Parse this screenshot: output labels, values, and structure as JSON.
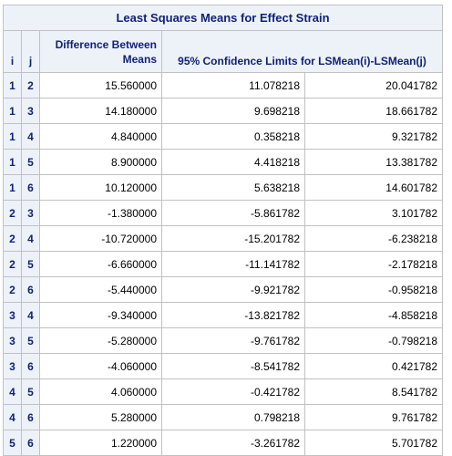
{
  "title": "Least Squares Means for Effect Strain",
  "headers": {
    "i": "i",
    "j": "j",
    "difference_line1": "Difference Between",
    "difference_line2": "Means",
    "confidence_limits": "95% Confidence Limits for LSMean(i)-LSMean(j)"
  },
  "rows": [
    {
      "i": "1",
      "j": "2",
      "diff": "15.560000",
      "lower": "11.078218",
      "upper": "20.041782"
    },
    {
      "i": "1",
      "j": "3",
      "diff": "14.180000",
      "lower": "9.698218",
      "upper": "18.661782"
    },
    {
      "i": "1",
      "j": "4",
      "diff": "4.840000",
      "lower": "0.358218",
      "upper": "9.321782"
    },
    {
      "i": "1",
      "j": "5",
      "diff": "8.900000",
      "lower": "4.418218",
      "upper": "13.381782"
    },
    {
      "i": "1",
      "j": "6",
      "diff": "10.120000",
      "lower": "5.638218",
      "upper": "14.601782"
    },
    {
      "i": "2",
      "j": "3",
      "diff": "-1.380000",
      "lower": "-5.861782",
      "upper": "3.101782"
    },
    {
      "i": "2",
      "j": "4",
      "diff": "-10.720000",
      "lower": "-15.201782",
      "upper": "-6.238218"
    },
    {
      "i": "2",
      "j": "5",
      "diff": "-6.660000",
      "lower": "-11.141782",
      "upper": "-2.178218"
    },
    {
      "i": "2",
      "j": "6",
      "diff": "-5.440000",
      "lower": "-9.921782",
      "upper": "-0.958218"
    },
    {
      "i": "3",
      "j": "4",
      "diff": "-9.340000",
      "lower": "-13.821782",
      "upper": "-4.858218"
    },
    {
      "i": "3",
      "j": "5",
      "diff": "-5.280000",
      "lower": "-9.761782",
      "upper": "-0.798218"
    },
    {
      "i": "3",
      "j": "6",
      "diff": "-4.060000",
      "lower": "-8.541782",
      "upper": "0.421782"
    },
    {
      "i": "4",
      "j": "5",
      "diff": "4.060000",
      "lower": "-0.421782",
      "upper": "8.541782"
    },
    {
      "i": "4",
      "j": "6",
      "diff": "5.280000",
      "lower": "0.798218",
      "upper": "9.761782"
    },
    {
      "i": "5",
      "j": "6",
      "diff": "1.220000",
      "lower": "-3.261782",
      "upper": "5.701782"
    }
  ]
}
